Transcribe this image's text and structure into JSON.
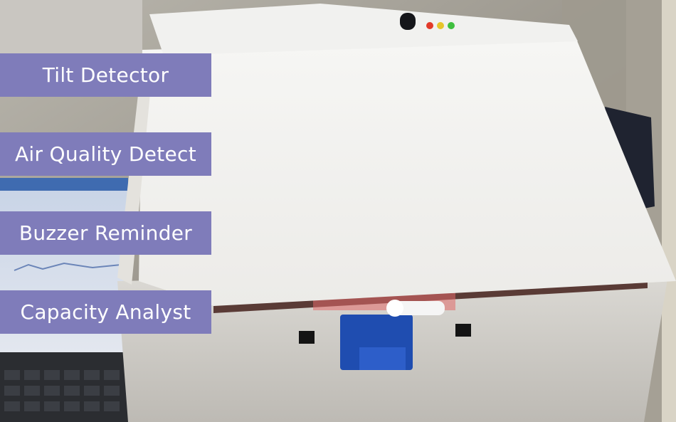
{
  "labels": {
    "tilt": "Tilt Detector",
    "air": "Air Quality Detect",
    "buzzer": "Buzzer Reminder",
    "capacity": "Capacity Analyst"
  }
}
